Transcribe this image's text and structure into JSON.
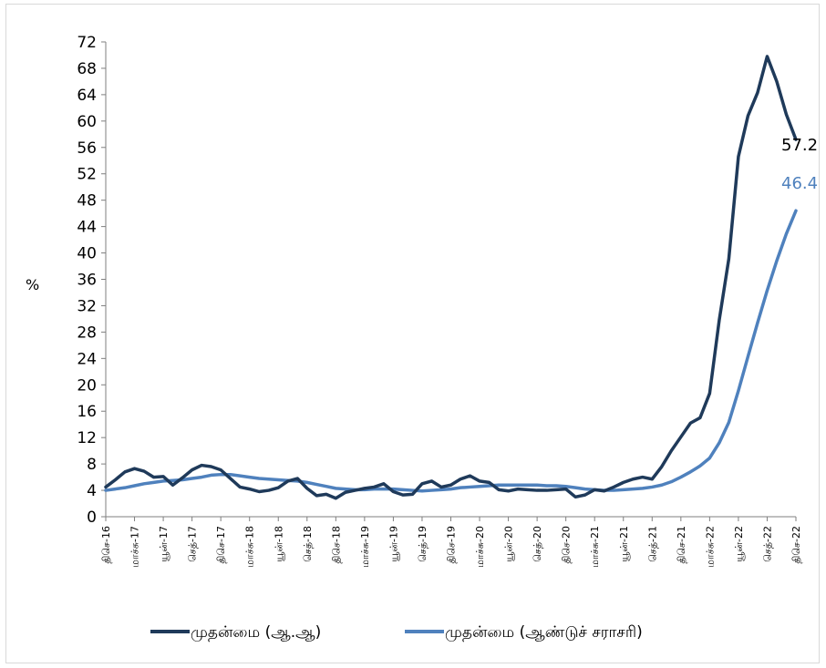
{
  "chart_data": {
    "type": "line",
    "ylabel": "%",
    "ylim": [
      0,
      72
    ],
    "yticks": [
      0,
      4,
      8,
      12,
      16,
      20,
      24,
      28,
      32,
      36,
      40,
      44,
      48,
      52,
      56,
      60,
      64,
      68,
      72
    ],
    "xtick_labels": [
      "திசெ-16",
      "மாச்சு-17",
      "யூன்-17",
      "செத்-17",
      "திசெ-17",
      "மாச்சு-18",
      "யூன்-18",
      "செத்-18",
      "திசெ-18",
      "மாச்சு-19",
      "யூன்-19",
      "செத்-19",
      "திசெ-19",
      "மாச்சு-20",
      "யூன்-20",
      "செத்-20",
      "திசெ-20",
      "மாச்சு-21",
      "யூன்-21",
      "செத்-21",
      "திசெ-21",
      "மாச்சு-22",
      "யூன்-22",
      "செத்-22",
      "திசெ-22"
    ],
    "series": [
      {
        "name": "முதன்மை (ஆ.ஆ)",
        "color": "#1f3a5a",
        "end_label": "57.2",
        "values": [
          4.5,
          5.6,
          6.8,
          7.3,
          6.9,
          6.0,
          6.1,
          4.8,
          5.9,
          7.1,
          7.8,
          7.6,
          7.1,
          5.8,
          4.5,
          4.2,
          3.8,
          4.0,
          4.4,
          5.4,
          5.8,
          4.3,
          3.2,
          3.4,
          2.8,
          3.7,
          4.0,
          4.3,
          4.5,
          5.0,
          3.8,
          3.3,
          3.4,
          5.0,
          5.4,
          4.5,
          4.8,
          5.7,
          6.2,
          5.4,
          5.2,
          4.1,
          3.9,
          4.2,
          4.1,
          4.0,
          4.0,
          4.1,
          4.2,
          3.0,
          3.3,
          4.1,
          3.9,
          4.5,
          5.2,
          5.7,
          6.0,
          5.7,
          7.6,
          10.0,
          12.1,
          14.2,
          15.0,
          18.7,
          29.8,
          39.1,
          54.6,
          60.8,
          64.3,
          69.8,
          66.0,
          61.0,
          57.2
        ]
      },
      {
        "name": "முதன்மை (ஆண்டுச் சராசரி)",
        "color": "#4f81bd",
        "end_label": "46.4",
        "values": [
          4.0,
          4.2,
          4.4,
          4.7,
          5.0,
          5.2,
          5.4,
          5.5,
          5.6,
          5.8,
          6.0,
          6.3,
          6.4,
          6.4,
          6.2,
          6.0,
          5.8,
          5.7,
          5.6,
          5.5,
          5.4,
          5.2,
          4.9,
          4.6,
          4.3,
          4.2,
          4.1,
          4.1,
          4.2,
          4.2,
          4.2,
          4.1,
          4.0,
          3.9,
          4.0,
          4.1,
          4.2,
          4.4,
          4.5,
          4.6,
          4.7,
          4.8,
          4.8,
          4.8,
          4.8,
          4.8,
          4.7,
          4.7,
          4.6,
          4.4,
          4.2,
          4.1,
          4.0,
          4.0,
          4.1,
          4.2,
          4.3,
          4.5,
          4.8,
          5.3,
          6.0,
          6.8,
          7.7,
          8.9,
          11.2,
          14.3,
          19.1,
          24.3,
          29.4,
          34.3,
          38.8,
          42.9,
          46.4
        ]
      }
    ]
  },
  "legend": {
    "items": [
      {
        "label": "முதன்மை (ஆ.ஆ)"
      },
      {
        "label": "முதன்மை (ஆண்டுச் சராசரி)"
      }
    ]
  }
}
